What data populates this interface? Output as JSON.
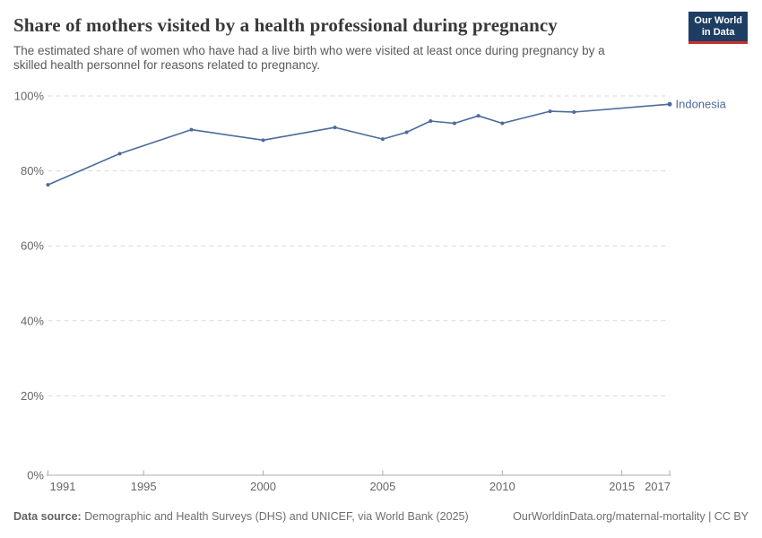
{
  "header": {
    "title": "Share of mothers visited by a health professional during pregnancy",
    "subtitle_lines": [
      "The estimated share of women who have had a live birth who were visited at least once during pregnancy by a",
      "skilled health personnel for reasons related to pregnancy."
    ]
  },
  "logo": {
    "line1": "Our World",
    "line2": "in Data"
  },
  "chart_data": {
    "type": "line",
    "title": "Share of mothers visited by a health professional during pregnancy",
    "x": [
      1991,
      1994,
      1997,
      2000,
      2003,
      2005,
      2006,
      2007,
      2008,
      2009,
      2010,
      2012,
      2013,
      2017
    ],
    "series": [
      {
        "name": "Indonesia",
        "color": "#4C6A9C",
        "values": [
          76.3,
          84.6,
          91.0,
          88.2,
          91.6,
          88.5,
          90.3,
          93.3,
          92.7,
          94.7,
          92.7,
          95.9,
          95.7,
          97.8
        ]
      }
    ],
    "xlim": [
      1991,
      2017
    ],
    "ylim": [
      0,
      100
    ],
    "xticks": [
      1991,
      1995,
      2000,
      2005,
      2010,
      2015,
      2017
    ],
    "yticks": [
      0,
      20,
      40,
      60,
      80,
      100
    ],
    "ytick_suffix": "%",
    "xlabel": "",
    "ylabel": "",
    "grid": "horizontal-dashed",
    "legend_position": "line-end-label"
  },
  "footer": {
    "source_label": "Data source:",
    "source_text": "Demographic and Health Surveys (DHS) and UNICEF, via World Bank (2025)",
    "credit": "OurWorldinData.org/maternal-mortality | CC BY"
  },
  "colors": {
    "line": "#4C6A9C",
    "grid": "#dadada",
    "axis": "#ababab",
    "tick_label": "#666666",
    "logo_bg": "#1d3d63",
    "logo_stripe": "#c5312d",
    "background": "#ffffff"
  }
}
